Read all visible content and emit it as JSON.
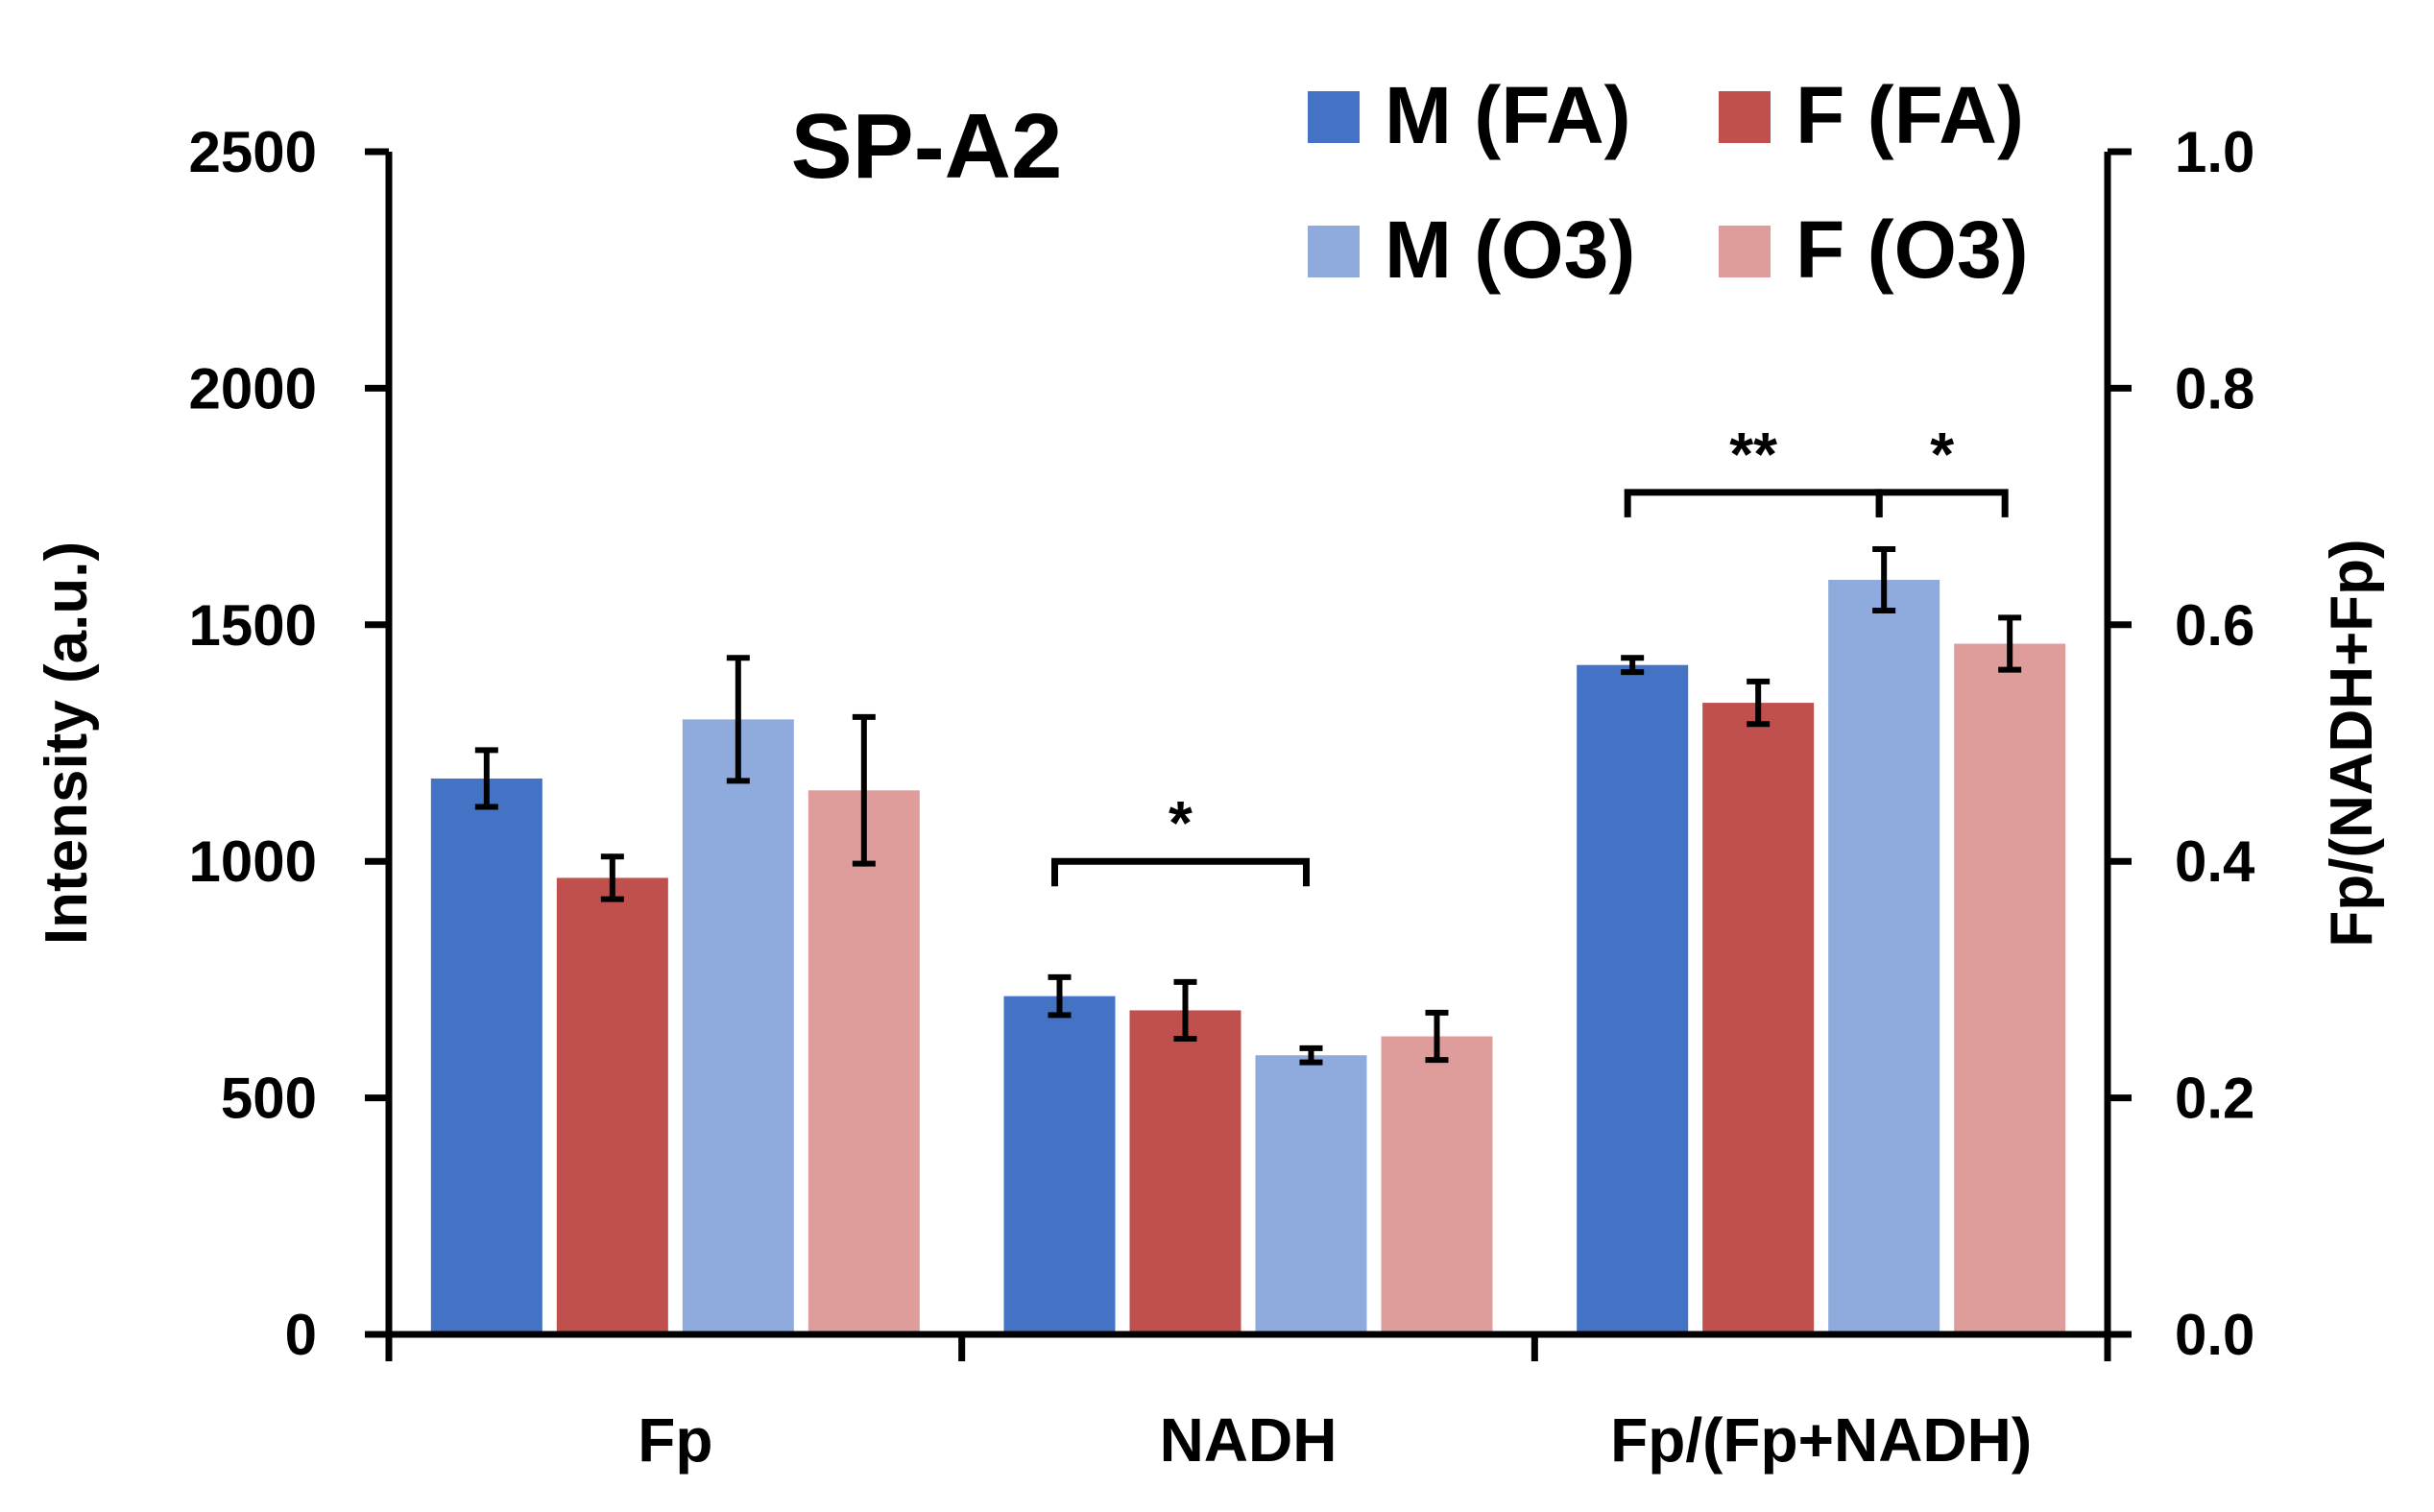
{
  "chart_data": {
    "type": "bar",
    "title": "SP-A2",
    "categories": [
      "Fp",
      "NADH",
      "Fp/(Fp+NADH)"
    ],
    "ylabel": "Intensity (a.u.)",
    "y2label": "Fp/(NADH+Fp)",
    "ylim": [
      0,
      2500
    ],
    "y2lim": [
      0,
      1.0
    ],
    "yticks": [
      "0",
      "500",
      "1000",
      "1500",
      "2000",
      "2500"
    ],
    "y2ticks": [
      "0.0",
      "0.2",
      "0.4",
      "0.6",
      "0.8",
      "1.0"
    ],
    "legend_position": "top-right",
    "grid": false,
    "series": [
      {
        "name": "M (FA)",
        "color": "#4472C4",
        "values": [
          1175,
          715,
          0.566
        ],
        "errors": [
          60,
          40,
          0.006
        ]
      },
      {
        "name": "F (FA)",
        "color": "#C0504D",
        "values": [
          965,
          685,
          0.534
        ],
        "errors": [
          45,
          60,
          0.018
        ]
      },
      {
        "name": "M (O3)",
        "color": "#8FAADC",
        "values": [
          1300,
          590,
          0.638
        ],
        "errors": [
          130,
          15,
          0.026
        ]
      },
      {
        "name": "F (O3)",
        "color": "#DE9D9B",
        "values": [
          1150,
          630,
          0.584
        ],
        "errors": [
          155,
          50,
          0.022
        ]
      }
    ],
    "annotations": [
      {
        "text": "*",
        "category": 1,
        "from_series": 0,
        "to_series": 2,
        "level": 1000
      },
      {
        "text": "**",
        "category": 2,
        "from_series": 0,
        "to_series": 2,
        "level": 1780
      },
      {
        "text": "*",
        "category": 2,
        "from_series": 2,
        "to_series": 3,
        "level": 1780
      }
    ]
  }
}
